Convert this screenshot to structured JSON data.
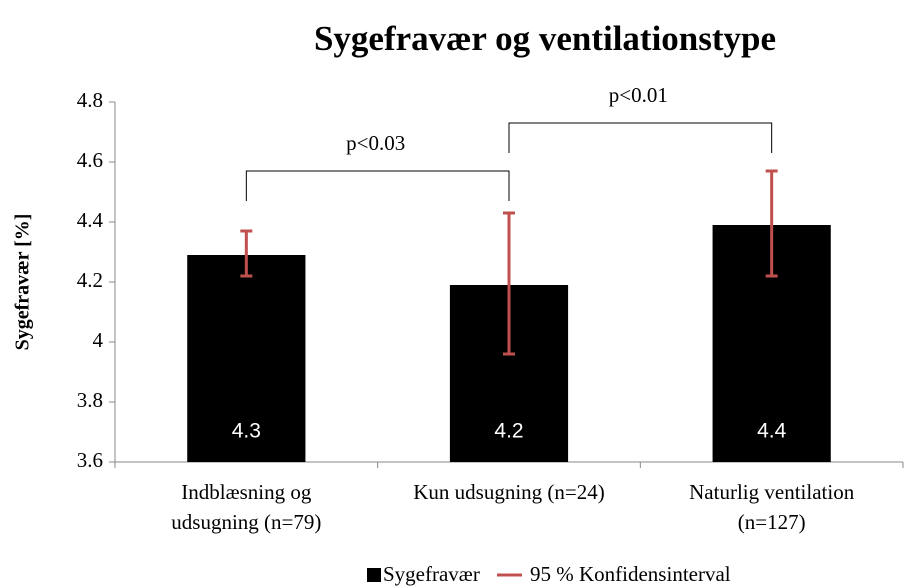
{
  "chart_data": {
    "type": "bar",
    "title": "Sygefravær og ventilationstype",
    "y_label": "Sygefravær [%]",
    "categories": [
      [
        "Indblæsning og",
        "udsugning (n=79)"
      ],
      [
        "Kun udsugning (n=24)"
      ],
      [
        "Naturlig ventilation",
        "(n=127)"
      ]
    ],
    "series": [
      {
        "name": "Sygefravær",
        "color": "#000000",
        "values": [
          4.29,
          4.19,
          4.39
        ],
        "value_labels": [
          "4.3",
          "4.2",
          "4.4"
        ]
      }
    ],
    "error_bars": {
      "name": "95 % Konfidensinterval",
      "color": "#c0504d",
      "low": [
        4.22,
        3.96,
        4.22
      ],
      "high": [
        4.37,
        4.43,
        4.57
      ]
    },
    "annotations": [
      {
        "text": "p<0.03",
        "from": 0,
        "to": 1,
        "y": 4.57
      },
      {
        "text": "p<0.01",
        "from": 1,
        "to": 2,
        "y": 4.73
      }
    ],
    "ylim": [
      3.6,
      4.8
    ],
    "yticks": [
      3.6,
      3.8,
      4,
      4.2,
      4.4,
      4.6,
      4.8
    ],
    "grid": false
  }
}
